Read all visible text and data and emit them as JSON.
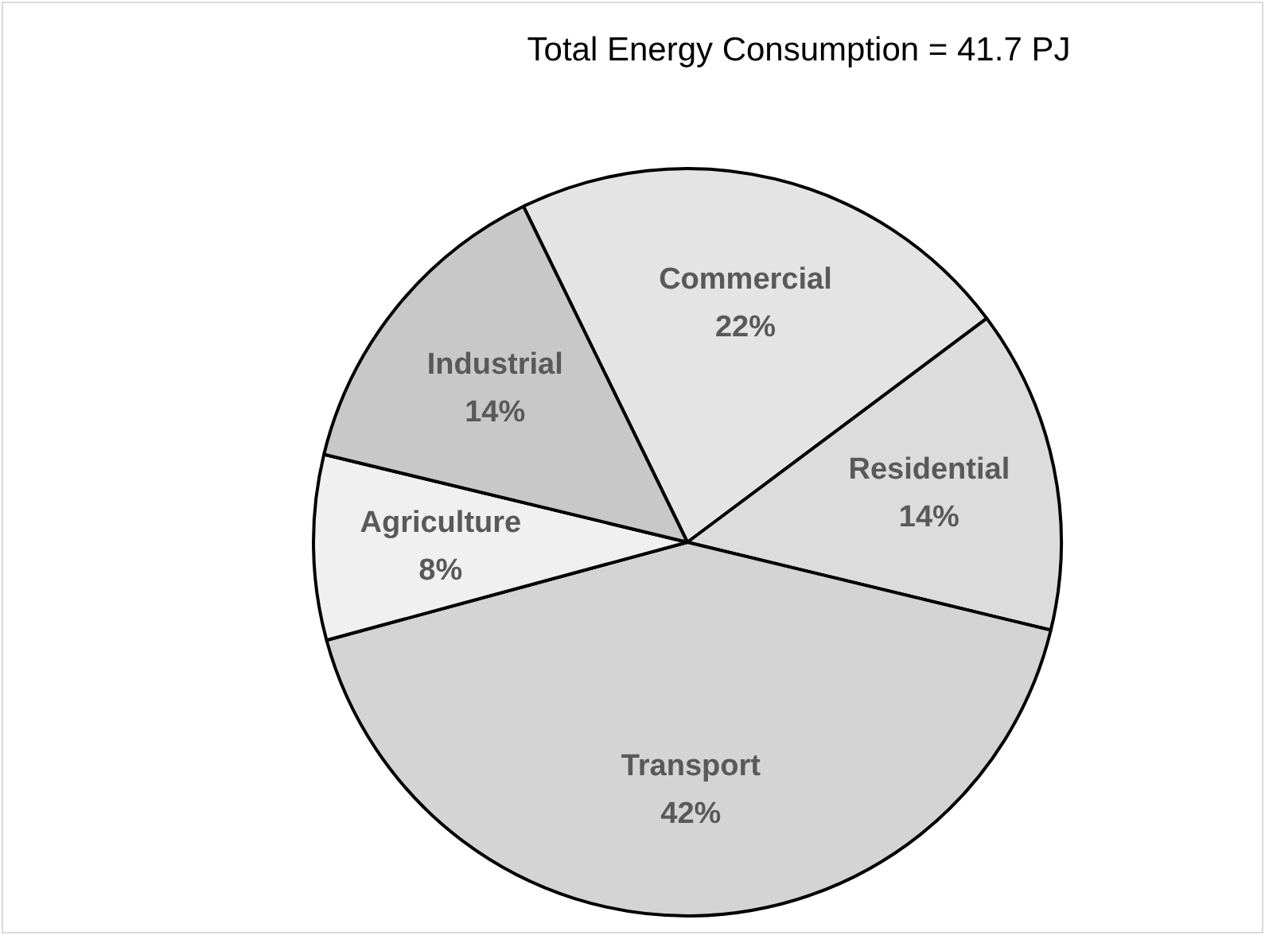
{
  "chart_data": {
    "type": "pie",
    "title": "Total Energy Consumption = 41.7 PJ",
    "categories": [
      "Commercial",
      "Residential",
      "Transport",
      "Agriculture",
      "Industrial"
    ],
    "values": [
      22,
      14,
      42,
      8,
      14
    ],
    "value_labels": [
      "22%",
      "14%",
      "42%",
      "8%",
      "14%"
    ],
    "colors": [
      "#e4e4e4",
      "#dcdcdc",
      "#d4d4d4",
      "#f0f0f0",
      "#c8c8c8"
    ],
    "legend": false
  }
}
